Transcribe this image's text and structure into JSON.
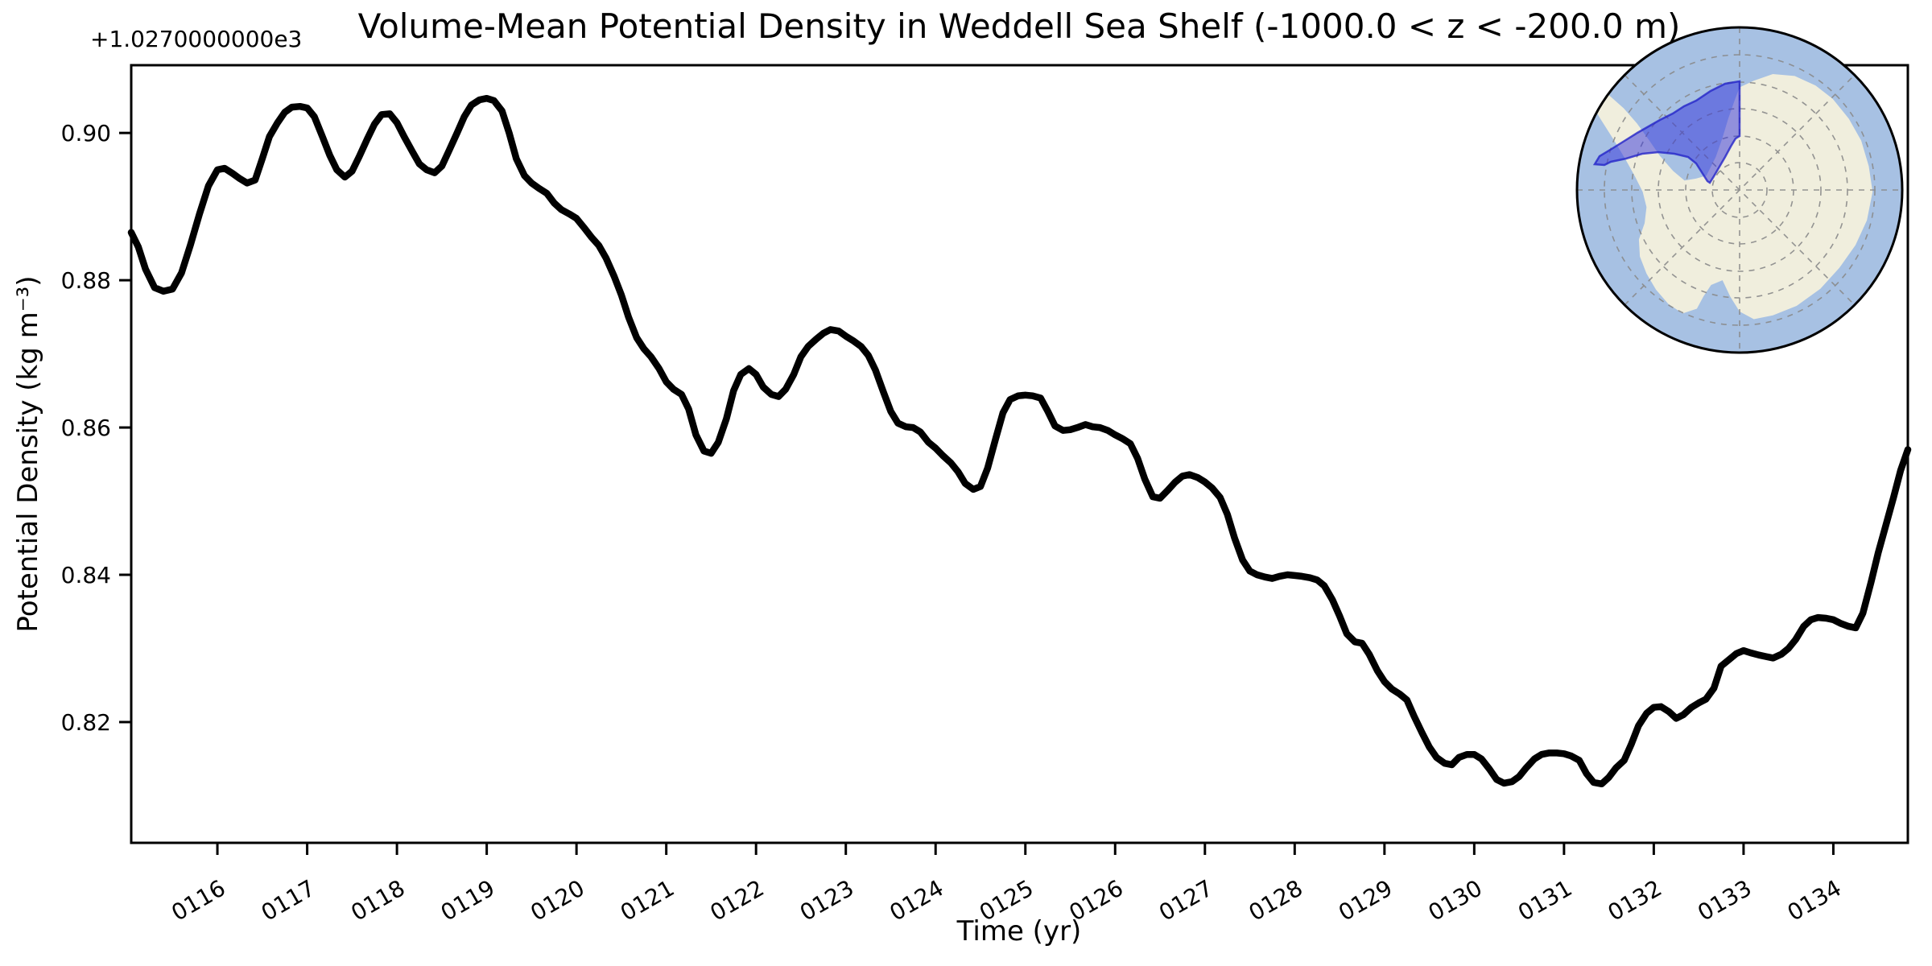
{
  "figure": {
    "background_color": "#ffffff",
    "title": "Volume-Mean Potential Density in Weddell Sea Shelf (-1000.0 < z < -200.0 m)"
  },
  "chart_data": {
    "type": "line",
    "title": "Volume-Mean Potential Density in Weddell Sea Shelf (-1000.0 < z < -200.0 m)",
    "xlabel": "Time (yr)",
    "ylabel": "Potential Density (kg m⁻³)",
    "grid": false,
    "legend": "none",
    "x_axis": {
      "lim": [
        115.04,
        134.83
      ],
      "tick_values": [
        116,
        117,
        118,
        119,
        120,
        121,
        122,
        123,
        124,
        125,
        126,
        127,
        128,
        129,
        130,
        131,
        132,
        133,
        134
      ],
      "tick_labels": [
        "0116",
        "0117",
        "0118",
        "0119",
        "0120",
        "0121",
        "0122",
        "0123",
        "0124",
        "0125",
        "0126",
        "0127",
        "0128",
        "0129",
        "0130",
        "0131",
        "0132",
        "0133",
        "0134"
      ],
      "tick_rotation_deg": 30
    },
    "y_axis": {
      "lim": [
        0.8036,
        0.9092
      ],
      "tick_values": [
        0.82,
        0.84,
        0.86,
        0.88,
        0.9
      ],
      "tick_labels": [
        "0.82",
        "0.84",
        "0.86",
        "0.88",
        "0.90"
      ],
      "offset_text": "+1.0270000000e3",
      "offset_value": 1027.0
    },
    "series": [
      {
        "name": "volume-mean-potential-density",
        "color": "#000000",
        "line_width": 8.5,
        "x": [
          115.04,
          115.12,
          115.2,
          115.3,
          115.4,
          115.5,
          115.6,
          115.7,
          115.8,
          115.9,
          116.0,
          116.08,
          116.17,
          116.25,
          116.33,
          116.42,
          116.5,
          116.58,
          116.67,
          116.75,
          116.83,
          116.92,
          117.0,
          117.08,
          117.17,
          117.25,
          117.33,
          117.42,
          117.5,
          117.58,
          117.67,
          117.75,
          117.83,
          117.92,
          118.0,
          118.08,
          118.17,
          118.25,
          118.33,
          118.42,
          118.5,
          118.58,
          118.67,
          118.75,
          118.83,
          118.92,
          119.0,
          119.08,
          119.17,
          119.25,
          119.33,
          119.42,
          119.5,
          119.58,
          119.67,
          119.75,
          119.83,
          119.92,
          120.0,
          120.08,
          120.17,
          120.25,
          120.33,
          120.42,
          120.5,
          120.58,
          120.67,
          120.75,
          120.83,
          120.92,
          121.0,
          121.08,
          121.17,
          121.25,
          121.33,
          121.42,
          121.5,
          121.58,
          121.67,
          121.75,
          121.83,
          121.92,
          122.0,
          122.08,
          122.17,
          122.25,
          122.33,
          122.42,
          122.5,
          122.58,
          122.67,
          122.75,
          122.83,
          122.92,
          123.0,
          123.08,
          123.17,
          123.25,
          123.33,
          123.42,
          123.5,
          123.58,
          123.67,
          123.75,
          123.83,
          123.92,
          124.0,
          124.08,
          124.17,
          124.25,
          124.33,
          124.42,
          124.5,
          124.58,
          124.67,
          124.75,
          124.83,
          124.92,
          125.0,
          125.08,
          125.17,
          125.25,
          125.33,
          125.42,
          125.5,
          125.58,
          125.67,
          125.75,
          125.83,
          125.92,
          126.0,
          126.08,
          126.17,
          126.25,
          126.33,
          126.42,
          126.5,
          126.58,
          126.67,
          126.75,
          126.83,
          126.92,
          127.0,
          127.08,
          127.17,
          127.25,
          127.33,
          127.42,
          127.5,
          127.58,
          127.67,
          127.75,
          127.83,
          127.92,
          128.0,
          128.08,
          128.17,
          128.25,
          128.33,
          128.42,
          128.5,
          128.58,
          128.67,
          128.75,
          128.83,
          128.92,
          129.0,
          129.08,
          129.17,
          129.25,
          129.33,
          129.42,
          129.5,
          129.58,
          129.67,
          129.75,
          129.83,
          129.92,
          130.0,
          130.08,
          130.17,
          130.25,
          130.33,
          130.42,
          130.5,
          130.58,
          130.67,
          130.75,
          130.83,
          130.92,
          131.0,
          131.08,
          131.17,
          131.25,
          131.33,
          131.42,
          131.5,
          131.58,
          131.67,
          131.75,
          131.83,
          131.92,
          132.0,
          132.08,
          132.17,
          132.25,
          132.33,
          132.42,
          132.5,
          132.58,
          132.67,
          132.75,
          132.83,
          132.92,
          133.0,
          133.08,
          133.17,
          133.25,
          133.33,
          133.42,
          133.5,
          133.58,
          133.67,
          133.75,
          133.83,
          133.92,
          134.0,
          134.08,
          134.17,
          134.25,
          134.33,
          134.42,
          134.5,
          134.58,
          134.67,
          134.75,
          134.83
        ],
        "y": [
          0.8865,
          0.8845,
          0.8815,
          0.879,
          0.8785,
          0.8788,
          0.881,
          0.8848,
          0.889,
          0.8928,
          0.895,
          0.8952,
          0.8945,
          0.8938,
          0.8932,
          0.8936,
          0.8965,
          0.8995,
          0.9014,
          0.9028,
          0.9035,
          0.9036,
          0.9034,
          0.9022,
          0.8995,
          0.897,
          0.895,
          0.894,
          0.8948,
          0.8968,
          0.8992,
          0.9012,
          0.9025,
          0.9026,
          0.9014,
          0.8995,
          0.8975,
          0.8958,
          0.895,
          0.8946,
          0.8955,
          0.8976,
          0.9,
          0.9022,
          0.9038,
          0.9045,
          0.9047,
          0.9044,
          0.903,
          0.9,
          0.8965,
          0.8942,
          0.8932,
          0.8925,
          0.8918,
          0.8905,
          0.8896,
          0.889,
          0.8884,
          0.8872,
          0.8858,
          0.8847,
          0.883,
          0.8805,
          0.878,
          0.875,
          0.8722,
          0.8707,
          0.8696,
          0.868,
          0.8662,
          0.8652,
          0.8645,
          0.8625,
          0.859,
          0.8568,
          0.8565,
          0.858,
          0.8612,
          0.865,
          0.8672,
          0.868,
          0.8672,
          0.8655,
          0.8645,
          0.8642,
          0.8652,
          0.8672,
          0.8696,
          0.871,
          0.872,
          0.8728,
          0.8733,
          0.8731,
          0.8724,
          0.8718,
          0.871,
          0.8698,
          0.8678,
          0.8648,
          0.8622,
          0.8606,
          0.8601,
          0.86,
          0.8594,
          0.858,
          0.8572,
          0.8562,
          0.8552,
          0.854,
          0.8524,
          0.8516,
          0.852,
          0.8545,
          0.8585,
          0.862,
          0.8638,
          0.8643,
          0.8644,
          0.8643,
          0.864,
          0.8622,
          0.8602,
          0.8596,
          0.8597,
          0.86,
          0.8604,
          0.8601,
          0.86,
          0.8596,
          0.859,
          0.8585,
          0.8578,
          0.8558,
          0.853,
          0.8506,
          0.8504,
          0.8514,
          0.8526,
          0.8534,
          0.8536,
          0.8532,
          0.8526,
          0.8518,
          0.8505,
          0.8482,
          0.845,
          0.842,
          0.8405,
          0.84,
          0.8397,
          0.8395,
          0.8398,
          0.84,
          0.8399,
          0.8398,
          0.8396,
          0.8393,
          0.8385,
          0.8366,
          0.8344,
          0.832,
          0.8309,
          0.8307,
          0.8292,
          0.827,
          0.8255,
          0.8245,
          0.8238,
          0.823,
          0.8208,
          0.8185,
          0.8166,
          0.8152,
          0.8144,
          0.8142,
          0.8152,
          0.8156,
          0.8156,
          0.815,
          0.8136,
          0.8122,
          0.8117,
          0.8119,
          0.8126,
          0.8138,
          0.815,
          0.8156,
          0.8158,
          0.8158,
          0.8157,
          0.8154,
          0.8148,
          0.813,
          0.8118,
          0.8116,
          0.8125,
          0.8138,
          0.8148,
          0.817,
          0.8195,
          0.8212,
          0.822,
          0.8221,
          0.8214,
          0.8205,
          0.821,
          0.822,
          0.8226,
          0.8231,
          0.8246,
          0.8276,
          0.8284,
          0.8293,
          0.8297,
          0.8294,
          0.8291,
          0.8289,
          0.8287,
          0.8292,
          0.83,
          0.8312,
          0.833,
          0.8339,
          0.8342,
          0.8341,
          0.8339,
          0.8334,
          0.833,
          0.8328,
          0.8348,
          0.839,
          0.843,
          0.8465,
          0.8505,
          0.8542,
          0.857
        ]
      }
    ]
  },
  "inset_map": {
    "ocean_color": "#a7c1e3",
    "land_color": "#f0eedd",
    "graticule_color": "#8a8a8a",
    "outline_color": "#000000",
    "highlight_fill": "#3232dc",
    "highlight_stroke": "#2424c8",
    "highlight_opacity": "0.5"
  }
}
